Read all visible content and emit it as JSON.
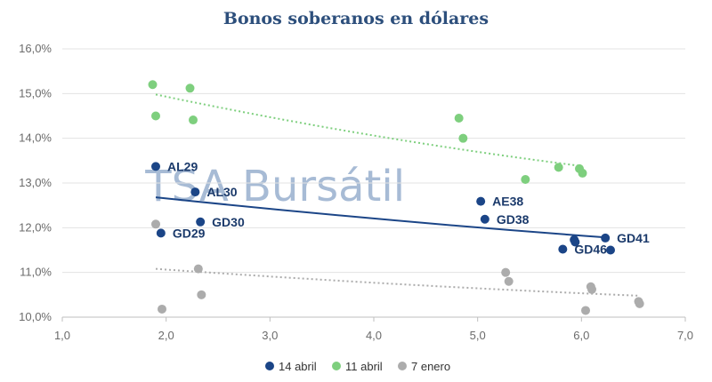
{
  "chart_data": {
    "type": "scatter",
    "title": "Bonos soberanos en dólares",
    "xlabel": "",
    "ylabel": "",
    "xlim": [
      1.0,
      7.0
    ],
    "ylim": [
      10.0,
      16.0
    ],
    "x_ticks": [
      1.0,
      2.0,
      3.0,
      4.0,
      5.0,
      6.0,
      7.0
    ],
    "y_ticks": [
      10.0,
      11.0,
      12.0,
      13.0,
      14.0,
      15.0,
      16.0
    ],
    "x_tick_labels": [
      "1,0",
      "2,0",
      "3,0",
      "4,0",
      "5,0",
      "6,0",
      "7,0"
    ],
    "y_tick_labels": [
      "10,0%",
      "11,0%",
      "12,0%",
      "13,0%",
      "14,0%",
      "15,0%",
      "16,0%"
    ],
    "grid": "horizontal",
    "legend_position": "bottom",
    "watermark": "TSA Bursátil",
    "series": [
      {
        "name": "14 abril",
        "color": "#1b4587",
        "trendline": "solid",
        "trend": [
          [
            1.9,
            12.68
          ],
          [
            6.25,
            11.78
          ]
        ],
        "points": [
          {
            "x": 1.9,
            "y": 13.37,
            "label": "AL29"
          },
          {
            "x": 1.95,
            "y": 11.88,
            "label": "GD29"
          },
          {
            "x": 2.28,
            "y": 12.8,
            "label": "AL30"
          },
          {
            "x": 2.33,
            "y": 12.13,
            "label": "GD30"
          },
          {
            "x": 5.03,
            "y": 12.59,
            "label": "AE38"
          },
          {
            "x": 5.07,
            "y": 12.19,
            "label": "GD38"
          },
          {
            "x": 5.82,
            "y": 11.52,
            "label": "GD46"
          },
          {
            "x": 5.93,
            "y": 11.73,
            "label": ""
          },
          {
            "x": 5.94,
            "y": 11.68,
            "label": ""
          },
          {
            "x": 6.23,
            "y": 11.77,
            "label": "GD41"
          },
          {
            "x": 6.28,
            "y": 11.5,
            "label": ""
          }
        ]
      },
      {
        "name": "11 abril",
        "color": "#7ecf7e",
        "trendline": "dotted",
        "trend": [
          [
            1.9,
            14.98
          ],
          [
            6.0,
            13.38
          ]
        ],
        "points": [
          {
            "x": 1.87,
            "y": 15.2
          },
          {
            "x": 1.9,
            "y": 14.5
          },
          {
            "x": 2.23,
            "y": 15.12
          },
          {
            "x": 2.26,
            "y": 14.41
          },
          {
            "x": 4.82,
            "y": 14.45
          },
          {
            "x": 4.86,
            "y": 14.0
          },
          {
            "x": 5.46,
            "y": 13.08
          },
          {
            "x": 5.78,
            "y": 13.35
          },
          {
            "x": 5.98,
            "y": 13.32
          },
          {
            "x": 6.01,
            "y": 13.22
          }
        ]
      },
      {
        "name": "7 enero",
        "color": "#acacac",
        "trendline": "dotted",
        "trend": [
          [
            1.9,
            11.08
          ],
          [
            6.55,
            10.48
          ]
        ],
        "points": [
          {
            "x": 1.9,
            "y": 12.08
          },
          {
            "x": 1.96,
            "y": 10.18
          },
          {
            "x": 2.31,
            "y": 11.08
          },
          {
            "x": 2.34,
            "y": 10.5
          },
          {
            "x": 5.27,
            "y": 11.0
          },
          {
            "x": 5.3,
            "y": 10.8
          },
          {
            "x": 6.04,
            "y": 10.15
          },
          {
            "x": 6.09,
            "y": 10.68
          },
          {
            "x": 6.1,
            "y": 10.62
          },
          {
            "x": 6.55,
            "y": 10.35
          },
          {
            "x": 6.56,
            "y": 10.3
          }
        ]
      }
    ]
  }
}
